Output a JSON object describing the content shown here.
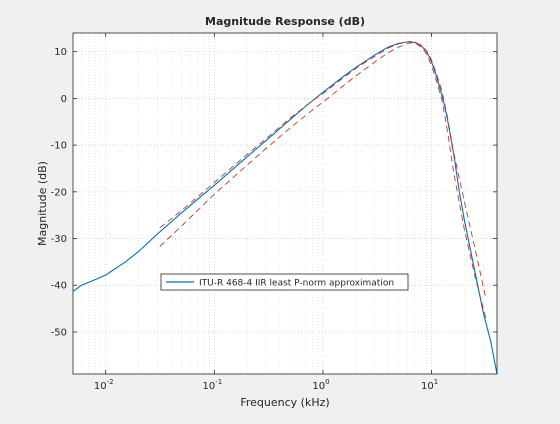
{
  "chart_data": {
    "type": "line",
    "title": "Magnitude Response (dB)",
    "xlabel": "Frequency (kHz)",
    "ylabel": "Magnitude (dB)",
    "xscale": "log",
    "xlim": [
      0.005,
      40
    ],
    "ylim": [
      -59,
      14
    ],
    "grid": true,
    "minor_grid": true,
    "legend_location": "southwest",
    "x_ticks": [
      {
        "value": 0.01,
        "base": "10",
        "exp": "-2"
      },
      {
        "value": 0.1,
        "base": "10",
        "exp": "-1"
      },
      {
        "value": 1,
        "base": "10",
        "exp": "0"
      },
      {
        "value": 10,
        "base": "10",
        "exp": "1"
      }
    ],
    "y_ticks": [
      10,
      0,
      -10,
      -20,
      -30,
      -40,
      -50
    ],
    "series": [
      {
        "name": "ITU-R 468-4 IIR least P-norm approximation",
        "color": "#0072bd",
        "style": "solid",
        "points": [
          [
            0.005,
            -41.3
          ],
          [
            0.006,
            -40.0
          ],
          [
            0.008,
            -38.8
          ],
          [
            0.01,
            -37.8
          ],
          [
            0.015,
            -35.1
          ],
          [
            0.02,
            -32.8
          ],
          [
            0.03,
            -29.0
          ],
          [
            0.05,
            -24.5
          ],
          [
            0.07,
            -21.6
          ],
          [
            0.1,
            -18.6
          ],
          [
            0.2,
            -12.5
          ],
          [
            0.3,
            -9.0
          ],
          [
            0.5,
            -4.5
          ],
          [
            0.7,
            -1.6
          ],
          [
            1.0,
            1.3
          ],
          [
            1.5,
            4.5
          ],
          [
            2.0,
            6.6
          ],
          [
            3.0,
            9.3
          ],
          [
            4.0,
            11.0
          ],
          [
            5.0,
            11.8
          ],
          [
            6.0,
            12.1
          ],
          [
            7.0,
            12.0
          ],
          [
            8.0,
            11.3
          ],
          [
            9.0,
            10.0
          ],
          [
            10.0,
            7.8
          ],
          [
            11.0,
            5.0
          ],
          [
            12.0,
            2.0
          ],
          [
            13.0,
            -1.0
          ],
          [
            14.0,
            -4.5
          ],
          [
            16.0,
            -12.0
          ],
          [
            18.0,
            -20.0
          ],
          [
            20.0,
            -26.0
          ],
          [
            25.0,
            -37.0
          ],
          [
            30.0,
            -46.0
          ],
          [
            35.0,
            -52.0
          ],
          [
            40.0,
            -59.0
          ]
        ]
      },
      {
        "name": "",
        "color": "#c0392b",
        "style": "dashed",
        "points": [
          [
            0.0315,
            -27.7
          ],
          [
            0.05,
            -24.0
          ],
          [
            0.1,
            -18.0
          ],
          [
            0.2,
            -12.0
          ],
          [
            0.3,
            -8.6
          ],
          [
            0.5,
            -4.2
          ],
          [
            0.8,
            -0.5
          ],
          [
            1.0,
            1.0
          ],
          [
            1.5,
            4.2
          ],
          [
            2.0,
            6.4
          ],
          [
            3.0,
            9.0
          ],
          [
            4.0,
            10.8
          ],
          [
            5.0,
            11.7
          ],
          [
            6.3,
            12.2
          ],
          [
            7.1,
            12.0
          ],
          [
            8.0,
            11.4
          ],
          [
            9.0,
            10.2
          ],
          [
            10.0,
            8.2
          ],
          [
            11.0,
            5.5
          ],
          [
            12.5,
            1.5
          ],
          [
            14.0,
            -4.0
          ],
          [
            16.0,
            -11.7
          ],
          [
            20.0,
            -22.0
          ],
          [
            25.0,
            -32.0
          ],
          [
            31.5,
            -42.7
          ]
        ]
      },
      {
        "name": "",
        "color": "#c0392b",
        "style": "dashed",
        "points": [
          [
            0.0315,
            -31.7
          ],
          [
            0.05,
            -27.3
          ],
          [
            0.1,
            -20.5
          ],
          [
            0.2,
            -14.3
          ],
          [
            0.3,
            -10.7
          ],
          [
            0.5,
            -6.3
          ],
          [
            0.8,
            -2.5
          ],
          [
            1.0,
            -0.8
          ],
          [
            1.5,
            2.5
          ],
          [
            2.0,
            4.8
          ],
          [
            3.0,
            7.8
          ],
          [
            4.0,
            9.8
          ],
          [
            5.0,
            11.0
          ],
          [
            6.3,
            11.9
          ],
          [
            7.1,
            11.8
          ],
          [
            8.0,
            11.0
          ],
          [
            9.0,
            9.5
          ],
          [
            10.0,
            7.0
          ],
          [
            11.0,
            4.0
          ],
          [
            12.5,
            -0.5
          ],
          [
            14.0,
            -7.0
          ],
          [
            16.0,
            -16.0
          ],
          [
            20.0,
            -28.0
          ],
          [
            25.0,
            -38.0
          ],
          [
            31.5,
            -47.0
          ]
        ]
      }
    ]
  }
}
